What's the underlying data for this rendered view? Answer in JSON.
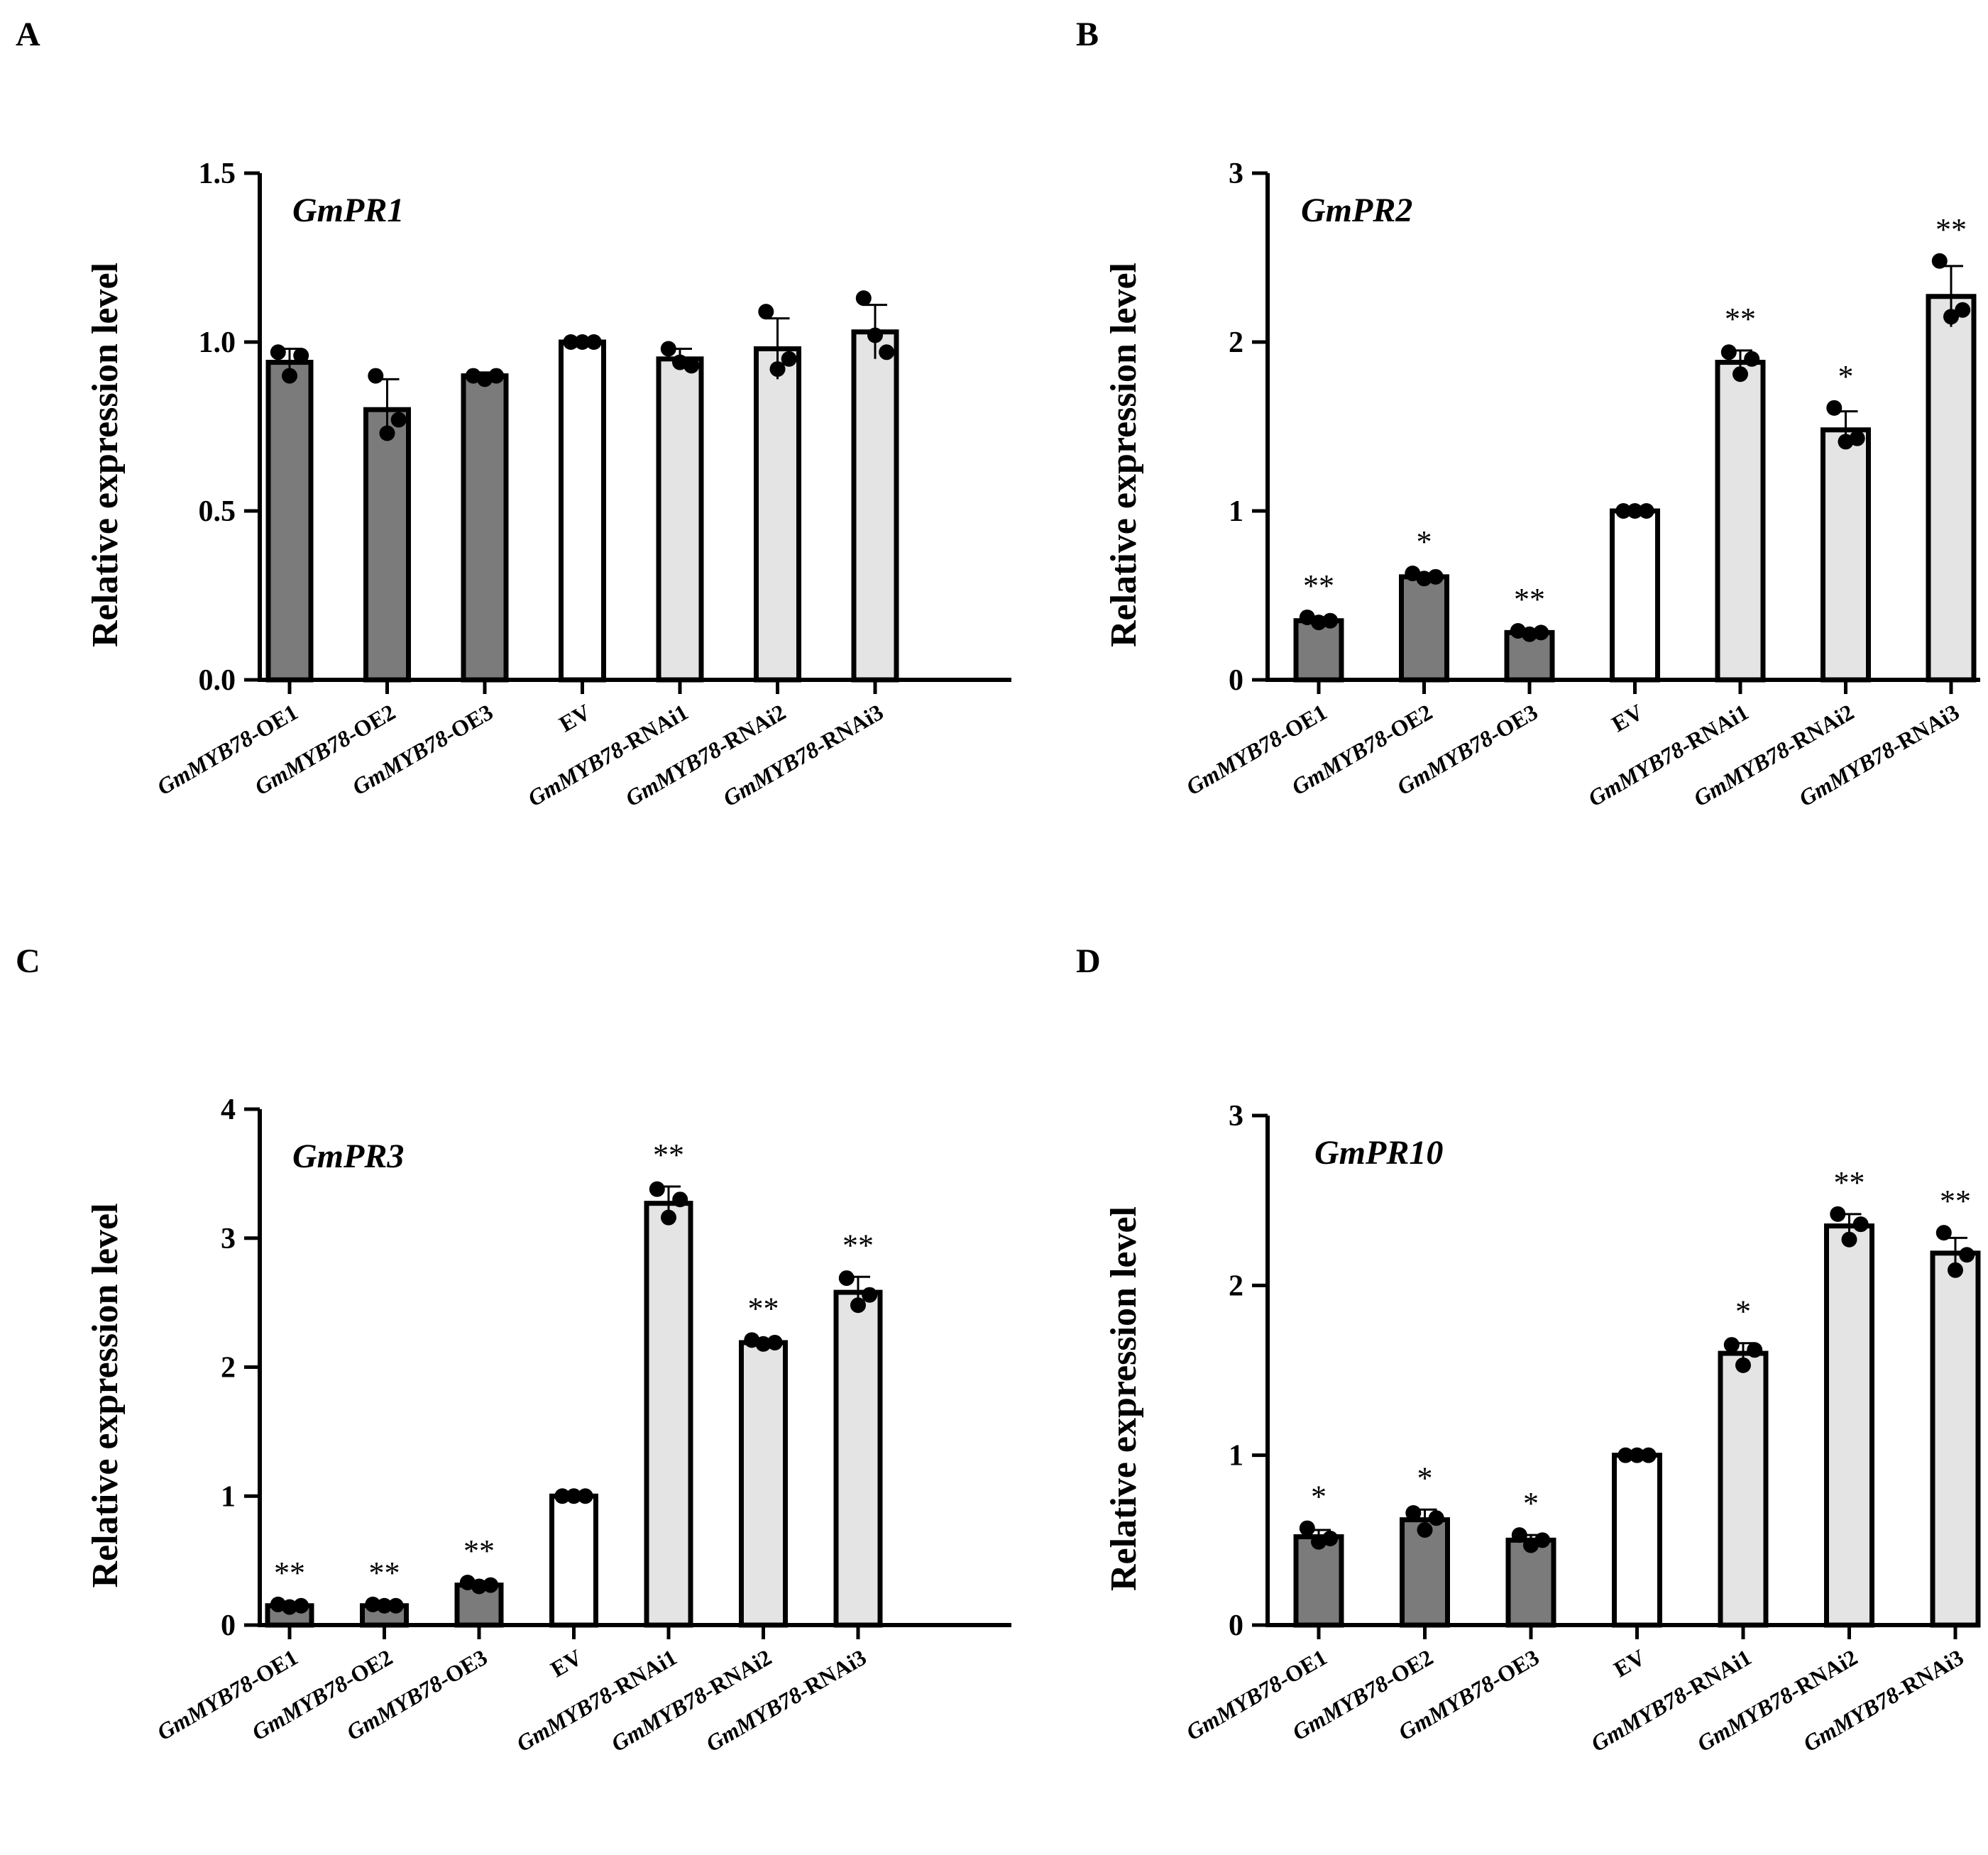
{
  "colors": {
    "oe": "#7b7b7b",
    "ev": "#ffffff",
    "rnai": "#e4e4e4",
    "stroke": "#000000"
  },
  "chart_data": [
    {
      "type": "bar",
      "panel": "A",
      "title": "GmPR1",
      "ylabel": "Relative expression level",
      "xlabel": "",
      "ylim": [
        0,
        1.5
      ],
      "yticks": [
        "0.0",
        "0.5",
        "1.0",
        "1.5"
      ],
      "ytick_values": [
        0,
        0.5,
        1.0,
        1.5
      ],
      "categories": [
        {
          "gene": "GmMYB78",
          "suffix": "-OE1"
        },
        {
          "gene": "GmMYB78",
          "suffix": "-OE2"
        },
        {
          "gene": "GmMYB78",
          "suffix": "-OE3"
        },
        {
          "gene": "",
          "suffix": "EV"
        },
        {
          "gene": "GmMYB78",
          "suffix": "-RNAi1"
        },
        {
          "gene": "GmMYB78",
          "suffix": "-RNAi2"
        },
        {
          "gene": "GmMYB78",
          "suffix": "-RNAi3"
        }
      ],
      "groups": [
        "oe",
        "oe",
        "oe",
        "ev",
        "rnai",
        "rnai",
        "rnai"
      ],
      "values": [
        0.94,
        0.8,
        0.9,
        1.0,
        0.95,
        0.98,
        1.03
      ],
      "errors": [
        0.04,
        0.09,
        0.01,
        0.0,
        0.03,
        0.09,
        0.08
      ],
      "points": [
        [
          0.97,
          0.9,
          0.96
        ],
        [
          0.9,
          0.73,
          0.77
        ],
        [
          0.9,
          0.89,
          0.9
        ],
        [
          1.0,
          1.0,
          1.0
        ],
        [
          0.98,
          0.94,
          0.93
        ],
        [
          1.09,
          0.92,
          0.95
        ],
        [
          1.13,
          1.02,
          0.97
        ]
      ],
      "significance": [
        "",
        "",
        "",
        "",
        "",
        "",
        ""
      ]
    },
    {
      "type": "bar",
      "panel": "B",
      "title": "GmPR2",
      "ylabel": "Relative expression level",
      "xlabel": "",
      "ylim": [
        0,
        3
      ],
      "yticks": [
        "0",
        "1",
        "2",
        "3"
      ],
      "ytick_values": [
        0,
        1,
        2,
        3
      ],
      "categories": [
        {
          "gene": "GmMYB78",
          "suffix": "-OE1"
        },
        {
          "gene": "GmMYB78",
          "suffix": "-OE2"
        },
        {
          "gene": "GmMYB78",
          "suffix": "-OE3"
        },
        {
          "gene": "",
          "suffix": "EV"
        },
        {
          "gene": "GmMYB78",
          "suffix": "-RNAi1"
        },
        {
          "gene": "GmMYB78",
          "suffix": "-RNAi2"
        },
        {
          "gene": "GmMYB78",
          "suffix": "-RNAi3"
        }
      ],
      "groups": [
        "oe",
        "oe",
        "oe",
        "ev",
        "rnai",
        "rnai",
        "rnai"
      ],
      "values": [
        0.35,
        0.61,
        0.28,
        1.0,
        1.88,
        1.48,
        2.27
      ],
      "errors": [
        0.02,
        0.02,
        0.01,
        0.0,
        0.07,
        0.11,
        0.18
      ],
      "points": [
        [
          0.37,
          0.34,
          0.35
        ],
        [
          0.63,
          0.6,
          0.61
        ],
        [
          0.29,
          0.27,
          0.28
        ],
        [
          1.0,
          1.0,
          1.0
        ],
        [
          1.94,
          1.81,
          1.9
        ],
        [
          1.61,
          1.41,
          1.43
        ],
        [
          2.48,
          2.15,
          2.19
        ]
      ],
      "significance": [
        "**",
        "*",
        "**",
        "",
        "**",
        "*",
        "**"
      ]
    },
    {
      "type": "bar",
      "panel": "C",
      "title": "GmPR3",
      "ylabel": "Relative expression level",
      "xlabel": "",
      "ylim": [
        0,
        4
      ],
      "yticks": [
        "0",
        "1",
        "2",
        "3",
        "4"
      ],
      "ytick_values": [
        0,
        1,
        2,
        3,
        4
      ],
      "categories": [
        {
          "gene": "GmMYB78",
          "suffix": "-OE1"
        },
        {
          "gene": "GmMYB78",
          "suffix": "-OE2"
        },
        {
          "gene": "GmMYB78",
          "suffix": "-OE3"
        },
        {
          "gene": "",
          "suffix": "EV"
        },
        {
          "gene": "GmMYB78",
          "suffix": "-RNAi1"
        },
        {
          "gene": "GmMYB78",
          "suffix": "-RNAi2"
        },
        {
          "gene": "GmMYB78",
          "suffix": "-RNAi3"
        }
      ],
      "groups": [
        "oe",
        "oe",
        "oe",
        "ev",
        "rnai",
        "rnai",
        "rnai"
      ],
      "values": [
        0.15,
        0.15,
        0.31,
        1.0,
        3.27,
        2.19,
        2.58
      ],
      "errors": [
        0.01,
        0.01,
        0.02,
        0.0,
        0.13,
        0.02,
        0.12
      ],
      "points": [
        [
          0.16,
          0.14,
          0.15
        ],
        [
          0.16,
          0.15,
          0.15
        ],
        [
          0.33,
          0.3,
          0.31
        ],
        [
          1.0,
          1.0,
          1.0
        ],
        [
          3.38,
          3.16,
          3.3
        ],
        [
          2.21,
          2.18,
          2.19
        ],
        [
          2.69,
          2.48,
          2.56
        ]
      ],
      "significance": [
        "**",
        "**",
        "**",
        "",
        "**",
        "**",
        "**"
      ]
    },
    {
      "type": "bar",
      "panel": "D",
      "title": "GmPR10",
      "ylabel": "Relative expression level",
      "xlabel": "",
      "ylim": [
        0,
        3
      ],
      "yticks": [
        "0",
        "1",
        "2",
        "3"
      ],
      "ytick_values": [
        0,
        1,
        2,
        3
      ],
      "categories": [
        {
          "gene": "GmMYB78",
          "suffix": "-OE1"
        },
        {
          "gene": "GmMYB78",
          "suffix": "-OE2"
        },
        {
          "gene": "GmMYB78",
          "suffix": "-OE3"
        },
        {
          "gene": "",
          "suffix": "EV"
        },
        {
          "gene": "GmMYB78",
          "suffix": "-RNAi1"
        },
        {
          "gene": "GmMYB78",
          "suffix": "-RNAi2"
        },
        {
          "gene": "GmMYB78",
          "suffix": "-RNAi3"
        }
      ],
      "groups": [
        "oe",
        "oe",
        "oe",
        "ev",
        "rnai",
        "rnai",
        "rnai"
      ],
      "values": [
        0.52,
        0.62,
        0.5,
        1.0,
        1.6,
        2.35,
        2.19
      ],
      "errors": [
        0.04,
        0.06,
        0.03,
        0.0,
        0.06,
        0.07,
        0.09
      ],
      "points": [
        [
          0.57,
          0.49,
          0.51
        ],
        [
          0.66,
          0.56,
          0.63
        ],
        [
          0.53,
          0.47,
          0.5
        ],
        [
          1.0,
          1.0,
          1.0
        ],
        [
          1.65,
          1.53,
          1.62
        ],
        [
          2.42,
          2.27,
          2.36
        ],
        [
          2.31,
          2.09,
          2.18
        ]
      ],
      "significance": [
        "*",
        "*",
        "*",
        "",
        "*",
        "**",
        "**"
      ]
    }
  ]
}
